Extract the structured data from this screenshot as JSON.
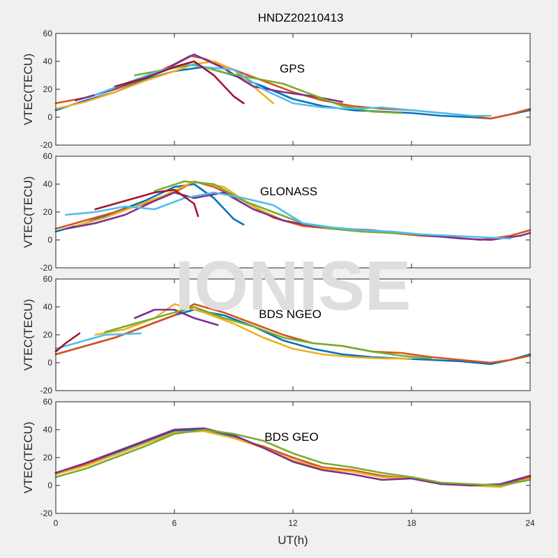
{
  "figure": {
    "title": "HNDZ20210413",
    "watermark": "IONISE",
    "xlabel": "UT(h)"
  },
  "colors": {
    "background": "#f0f0f0",
    "axes_bg": "#ffffff",
    "axis": "#262626",
    "watermark": "#dedede",
    "palette": [
      "#0072BD",
      "#D95319",
      "#EDB120",
      "#7E2F8E",
      "#77AC30",
      "#4DBEEE",
      "#A2142F"
    ]
  },
  "chart_data": [
    {
      "type": "line",
      "label": "GPS",
      "ylabel": "VTEC(TECU)",
      "xlim": [
        0,
        24
      ],
      "ylim": [
        -20,
        60
      ],
      "xticks": [
        0,
        6,
        12,
        18,
        24
      ],
      "yticks": [
        -20,
        0,
        20,
        40,
        60
      ],
      "series": [
        {
          "color": "#0072BD",
          "x": [
            0,
            1.5,
            3,
            4.5,
            6,
            7.5,
            9,
            10.5,
            12,
            13.5,
            15,
            16.5,
            18,
            19.5,
            21,
            22,
            23,
            24
          ],
          "y": [
            5,
            12,
            18,
            27,
            33,
            36,
            30,
            22,
            13,
            8,
            5,
            4,
            3,
            1,
            0,
            -1,
            2,
            5
          ]
        },
        {
          "color": "#D95319",
          "x": [
            0,
            1.5,
            3,
            4.5,
            6,
            6.8,
            7.5,
            9,
            10.5,
            12,
            13.5,
            15,
            16.5,
            18,
            19.5,
            21,
            22,
            23,
            24
          ],
          "y": [
            10,
            14,
            20,
            28,
            38,
            44,
            42,
            34,
            26,
            18,
            12,
            8,
            6,
            5,
            3,
            1,
            -1,
            2,
            6
          ]
        },
        {
          "color": "#EDB120",
          "x": [
            0,
            1.5,
            3,
            4.5,
            6,
            7,
            8,
            9,
            10,
            11
          ],
          "y": [
            6,
            11,
            18,
            26,
            33,
            38,
            40,
            34,
            22,
            10
          ]
        },
        {
          "color": "#7E2F8E",
          "x": [
            1,
            2.5,
            4,
            5.5,
            7,
            8.5,
            10,
            11.5,
            13,
            14.5
          ],
          "y": [
            12,
            18,
            26,
            34,
            45,
            35,
            22,
            18,
            15,
            11
          ]
        },
        {
          "color": "#77AC30",
          "x": [
            4,
            5.5,
            7,
            8.5,
            10,
            11.5,
            13,
            14.5,
            16,
            17.5
          ],
          "y": [
            30,
            34,
            38,
            32,
            28,
            24,
            16,
            8,
            4,
            3
          ]
        },
        {
          "color": "#4DBEEE",
          "x": [
            2,
            3.5,
            5,
            6.5,
            7.5,
            9,
            10.5,
            12,
            13.5,
            15,
            16.5,
            18,
            19.5,
            21,
            22
          ],
          "y": [
            16,
            24,
            32,
            38,
            36,
            34,
            20,
            10,
            7,
            6,
            7,
            5,
            3,
            1,
            1
          ]
        },
        {
          "color": "#A2142F",
          "x": [
            3,
            4.5,
            6,
            7,
            8,
            9,
            9.5
          ],
          "y": [
            22,
            28,
            36,
            40,
            30,
            15,
            10
          ]
        }
      ]
    },
    {
      "type": "line",
      "label": "GLONASS",
      "ylabel": "VTEC(TECU)",
      "xlim": [
        0,
        24
      ],
      "ylim": [
        -20,
        60
      ],
      "xticks": [
        0,
        6,
        12,
        18,
        24
      ],
      "yticks": [
        -20,
        0,
        20,
        40,
        60
      ],
      "series": [
        {
          "color": "#0072BD",
          "x": [
            0,
            1.5,
            3,
            4.5,
            6,
            7,
            8,
            9,
            9.5
          ],
          "y": [
            6,
            12,
            20,
            28,
            38,
            40,
            30,
            15,
            11
          ]
        },
        {
          "color": "#D95319",
          "x": [
            0,
            1.5,
            3,
            4.5,
            6,
            7,
            8,
            9.5,
            11,
            12.5,
            14,
            15.5,
            17,
            18.5,
            20,
            21.5,
            23,
            24
          ],
          "y": [
            8,
            14,
            20,
            26,
            34,
            42,
            38,
            28,
            16,
            10,
            8,
            6,
            5,
            3,
            2,
            0,
            3,
            7
          ]
        },
        {
          "color": "#EDB120",
          "x": [
            1,
            2.5,
            4,
            5.5,
            7,
            8.5,
            10,
            11.5,
            13,
            14.5
          ],
          "y": [
            10,
            16,
            24,
            32,
            42,
            38,
            24,
            14,
            10,
            8
          ]
        },
        {
          "color": "#7E2F8E",
          "x": [
            0.5,
            2,
            3.5,
            5,
            6,
            7,
            8.5,
            10,
            11.5,
            13,
            14.5,
            16,
            17.5,
            19,
            20.5,
            22,
            23.5,
            24
          ],
          "y": [
            8,
            12,
            18,
            28,
            34,
            30,
            34,
            22,
            14,
            10,
            8,
            7,
            5,
            3,
            1,
            0,
            3,
            5
          ]
        },
        {
          "color": "#77AC30",
          "x": [
            5,
            6.5,
            8,
            9.5,
            11,
            12.5,
            14,
            15.5,
            17,
            18.5
          ],
          "y": [
            35,
            42,
            40,
            28,
            20,
            12,
            8,
            6,
            5,
            4
          ]
        },
        {
          "color": "#4DBEEE",
          "x": [
            0.5,
            2,
            3.5,
            5,
            6.5,
            8,
            9.5,
            11,
            12.5,
            14,
            15.5,
            17,
            18.5,
            20,
            21.5,
            23
          ],
          "y": [
            18,
            20,
            24,
            22,
            30,
            34,
            30,
            25,
            12,
            9,
            7,
            6,
            4,
            3,
            2,
            1
          ]
        },
        {
          "color": "#A2142F",
          "x": [
            2,
            3.5,
            5,
            6,
            7,
            7.2
          ],
          "y": [
            22,
            28,
            34,
            36,
            26,
            17
          ]
        }
      ]
    },
    {
      "type": "line",
      "label": "BDS NGEO",
      "ylabel": "VTEC(TECU)",
      "xlim": [
        0,
        24
      ],
      "ylim": [
        -20,
        60
      ],
      "xticks": [
        0,
        6,
        12,
        18,
        24
      ],
      "yticks": [
        -20,
        0,
        20,
        40,
        60
      ],
      "series": [
        {
          "color": "#0072BD",
          "x": [
            0,
            1.5,
            3,
            4.5,
            6,
            7,
            8.5,
            10,
            11.5,
            13,
            14.5,
            16,
            17.5,
            19,
            20.5,
            22,
            23,
            24
          ],
          "y": [
            6,
            12,
            18,
            26,
            34,
            38,
            34,
            26,
            16,
            10,
            6,
            4,
            3,
            2,
            1,
            -1,
            2,
            6
          ]
        },
        {
          "color": "#D95319",
          "x": [
            0,
            1.5,
            3,
            4.5,
            6,
            7,
            8.5,
            10,
            11.5,
            13,
            14.5,
            16,
            17.5,
            19,
            20.5,
            22,
            23,
            24
          ],
          "y": [
            6,
            12,
            18,
            26,
            34,
            42,
            36,
            28,
            20,
            14,
            12,
            8,
            7,
            4,
            2,
            0,
            2,
            5
          ]
        },
        {
          "color": "#EDB120",
          "x": [
            2,
            3.5,
            5,
            6,
            7.5,
            9,
            10.5,
            12,
            13.5,
            15,
            16.5,
            18
          ],
          "y": [
            20,
            24,
            32,
            42,
            36,
            28,
            18,
            10,
            6,
            4,
            3,
            3
          ]
        },
        {
          "color": "#7E2F8E",
          "x": [
            4,
            5,
            6,
            7,
            8.2
          ],
          "y": [
            32,
            38,
            38,
            32,
            27
          ]
        },
        {
          "color": "#77AC30",
          "x": [
            2.5,
            4,
            5.5,
            7,
            8.5,
            10,
            11.5,
            13,
            14.5,
            16,
            17.5,
            19
          ],
          "y": [
            22,
            28,
            34,
            40,
            32,
            26,
            18,
            14,
            12,
            8,
            5,
            3
          ]
        },
        {
          "color": "#4DBEEE",
          "x": [
            0,
            1,
            2.5,
            4.3
          ],
          "y": [
            10,
            14,
            20,
            21
          ]
        },
        {
          "color": "#A2142F",
          "x": [
            0,
            0.5,
            1.2
          ],
          "y": [
            8,
            14,
            21
          ]
        }
      ]
    },
    {
      "type": "line",
      "label": "BDS GEO",
      "ylabel": "VTEC(TECU)",
      "xlim": [
        0,
        24
      ],
      "ylim": [
        -20,
        60
      ],
      "xticks": [
        0,
        6,
        12,
        18,
        24
      ],
      "yticks": [
        -20,
        0,
        20,
        40,
        60
      ],
      "series": [
        {
          "color": "#0072BD",
          "x": [
            0,
            1.5,
            3,
            4.5,
            6,
            7.5,
            9,
            10.5,
            12,
            13.5,
            15,
            16.5,
            18,
            19.5,
            21,
            22.5,
            24
          ],
          "y": [
            9,
            15,
            23,
            31,
            39,
            40,
            35,
            27,
            18,
            12,
            10,
            6,
            5,
            1,
            0,
            0,
            6
          ]
        },
        {
          "color": "#D95319",
          "x": [
            0,
            1.5,
            3,
            4.5,
            6,
            7.5,
            9,
            10.5,
            12,
            13.5,
            15,
            16.5,
            18,
            19.5,
            21,
            22.5,
            24
          ],
          "y": [
            9,
            15,
            22,
            30,
            38,
            39,
            34,
            28,
            20,
            13,
            11,
            7,
            5,
            1,
            0,
            -1,
            6
          ]
        },
        {
          "color": "#EDB120",
          "x": [
            0,
            1.5,
            3,
            4.5,
            6,
            7.5,
            9,
            10.5,
            12,
            13.5,
            15,
            16.5,
            18,
            19.5,
            21,
            22.5,
            24
          ],
          "y": [
            8,
            14,
            22,
            30,
            38,
            39,
            34,
            27,
            18,
            12,
            10,
            6,
            5,
            1,
            0,
            -1,
            5
          ]
        },
        {
          "color": "#7E2F8E",
          "x": [
            0,
            1.5,
            3,
            4.5,
            6,
            7.5,
            9,
            10.5,
            12,
            13.5,
            15,
            16.5,
            18,
            19.5,
            21,
            22.5,
            24
          ],
          "y": [
            9,
            16,
            24,
            32,
            40,
            41,
            36,
            27,
            17,
            11,
            8,
            4,
            5,
            1,
            0,
            1,
            7
          ]
        },
        {
          "color": "#77AC30",
          "x": [
            0,
            1.5,
            3,
            4.5,
            6,
            7.5,
            9,
            10.5,
            12,
            13.5,
            15,
            16.5,
            18,
            19.5,
            21,
            22.5,
            24
          ],
          "y": [
            6,
            12,
            20,
            28,
            37,
            40,
            37,
            32,
            23,
            16,
            13,
            9,
            6,
            2,
            1,
            0,
            4
          ]
        }
      ]
    }
  ]
}
